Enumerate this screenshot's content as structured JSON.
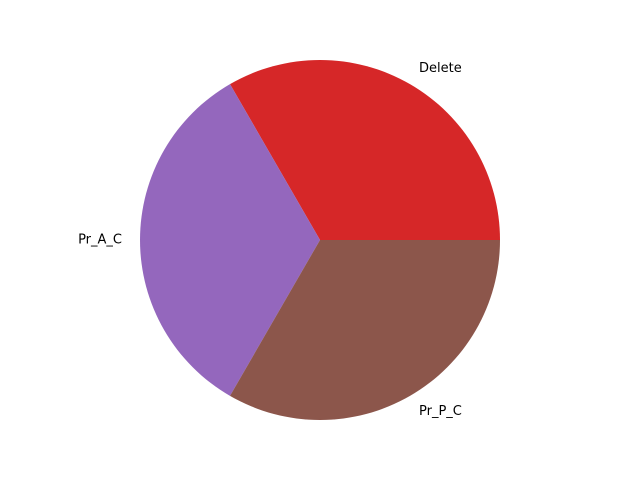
{
  "chart_data": {
    "type": "pie",
    "title": "",
    "categories": [
      "Delete",
      "Pr_A_C",
      "Pr_P_C"
    ],
    "values": [
      1,
      1,
      1
    ],
    "colors": [
      "#d62728",
      "#9467bd",
      "#8c564b"
    ],
    "start_angle_deg": 0,
    "direction": "counterclockwise",
    "legend": "none"
  }
}
